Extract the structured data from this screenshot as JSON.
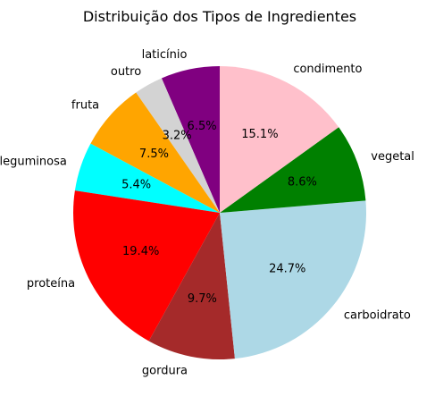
{
  "chart_data": {
    "type": "pie",
    "title": "Distribuição dos Tipos de Ingredientes",
    "slices": [
      {
        "label": "laticínio",
        "percent": 6.5,
        "pct_label": "6.5%",
        "color": "#800080"
      },
      {
        "label": "outro",
        "percent": 3.2,
        "pct_label": "3.2%",
        "color": "#d3d3d3"
      },
      {
        "label": "fruta",
        "percent": 7.5,
        "pct_label": "7.5%",
        "color": "#ffa500"
      },
      {
        "label": "leguminosa",
        "percent": 5.4,
        "pct_label": "5.4%",
        "color": "#00ffff"
      },
      {
        "label": "proteína",
        "percent": 19.4,
        "pct_label": "19.4%",
        "color": "#ff0000"
      },
      {
        "label": "gordura",
        "percent": 9.7,
        "pct_label": "9.7%",
        "color": "#a52a2a"
      },
      {
        "label": "carboidrato",
        "percent": 24.7,
        "pct_label": "24.7%",
        "color": "#add8e6"
      },
      {
        "label": "vegetal",
        "percent": 8.6,
        "pct_label": "8.6%",
        "color": "#008000"
      },
      {
        "label": "condimento",
        "percent": 15.1,
        "pct_label": "15.1%",
        "color": "#ffc0cb"
      }
    ],
    "start_angle_deg": 90,
    "direction": "counterclockwise"
  }
}
